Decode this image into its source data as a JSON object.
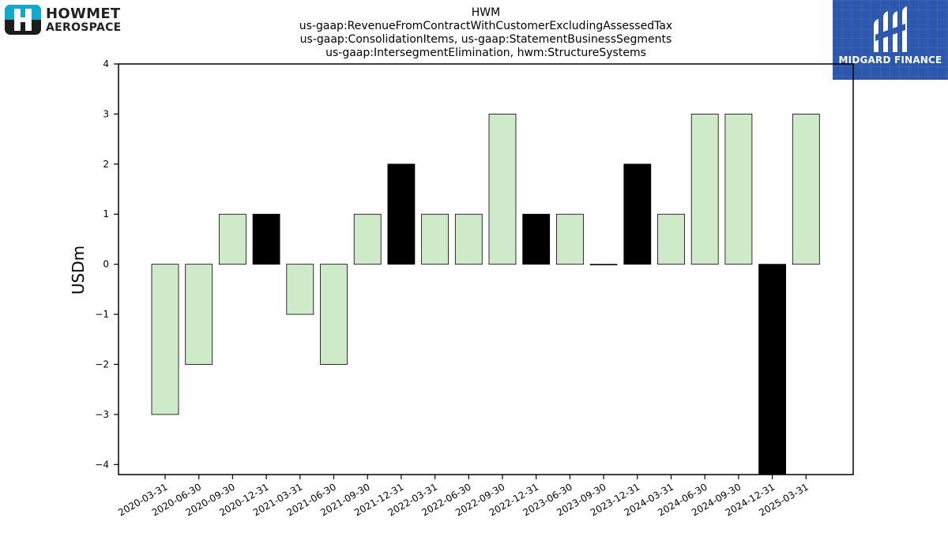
{
  "logo": {
    "line1": "HOWMET",
    "line2": "AEROSPACE",
    "colors": {
      "teal": "#12a9cc",
      "dark": "#1c1c1c"
    }
  },
  "brand_badge": {
    "label": "MIDGARD FINANCE",
    "background": "#2c57ad"
  },
  "chart_data": {
    "type": "bar",
    "title_lines": [
      "HWM",
      "us-gaap:RevenueFromContractWithCustomerExcludingAssessedTax",
      "us-gaap:ConsolidationItems, us-gaap:StatementBusinessSegments",
      "us-gaap:IntersegmentElimination, hwm:StructureSystems"
    ],
    "ylabel": "USDm",
    "xlabel": "",
    "ylim": [
      -4.2,
      4
    ],
    "yticks": [
      4,
      3,
      2,
      1,
      0,
      -1,
      -2,
      -3,
      -4
    ],
    "ytick_labels": [
      "4",
      "3",
      "2",
      "1",
      "0",
      "−1",
      "−2",
      "−3",
      "−4"
    ],
    "categories": [
      "2020-03-31",
      "2020-06-30",
      "2020-09-30",
      "2020-12-31",
      "2021-03-31",
      "2021-06-30",
      "2021-09-30",
      "2021-12-31",
      "2022-03-31",
      "2022-06-30",
      "2022-09-30",
      "2022-12-31",
      "2023-06-30",
      "2023-09-30",
      "2023-12-31",
      "2024-03-31",
      "2024-06-30",
      "2024-09-30",
      "2024-12-31",
      "2025-03-31"
    ],
    "values": [
      -3,
      -2,
      1,
      1,
      -1,
      -2,
      1,
      2,
      1,
      1,
      3,
      1,
      1,
      0,
      2,
      1,
      3,
      3,
      -4.2,
      3
    ],
    "bar_colors": [
      "#cfeac8",
      "#cfeac8",
      "#cfeac8",
      "#000000",
      "#cfeac8",
      "#cfeac8",
      "#cfeac8",
      "#000000",
      "#cfeac8",
      "#cfeac8",
      "#cfeac8",
      "#000000",
      "#cfeac8",
      "#cfeac8",
      "#000000",
      "#cfeac8",
      "#cfeac8",
      "#cfeac8",
      "#000000",
      "#cfeac8"
    ],
    "grid": false,
    "legend": "none"
  }
}
